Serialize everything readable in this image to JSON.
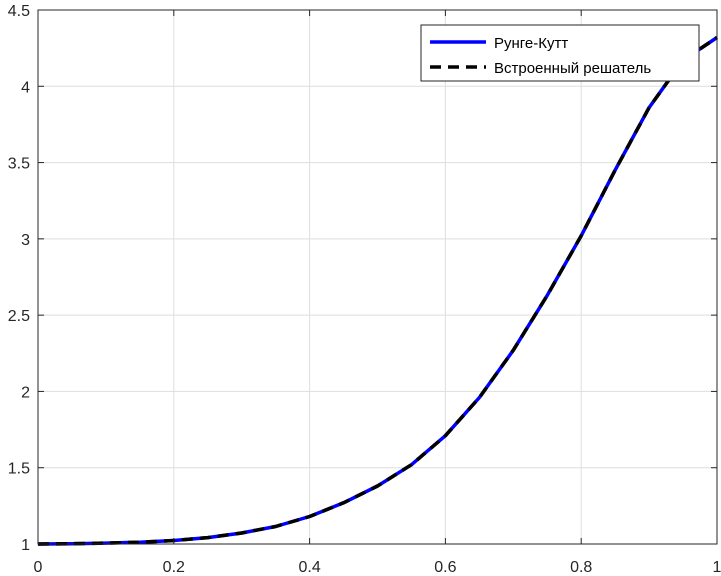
{
  "chart_data": {
    "type": "line",
    "title": "",
    "xlabel": "",
    "ylabel": "",
    "xlim": [
      0,
      1
    ],
    "ylim": [
      1,
      4.5
    ],
    "xticks": [
      "0",
      "0.2",
      "0.4",
      "0.6",
      "0.8",
      "1"
    ],
    "yticks": [
      "1",
      "1.5",
      "2",
      "2.5",
      "3",
      "3.5",
      "4",
      "4.5"
    ],
    "grid": true,
    "legend_position": "top-right",
    "series": [
      {
        "name": "Рунге-Кутт",
        "color": "#0000ff",
        "style": "solid",
        "x": [
          0,
          0.05,
          0.1,
          0.15,
          0.2,
          0.25,
          0.3,
          0.35,
          0.4,
          0.45,
          0.5,
          0.55,
          0.6,
          0.65,
          0.7,
          0.75,
          0.8,
          0.85,
          0.9,
          0.95,
          1.0
        ],
        "y": [
          1.0,
          1.002,
          1.006,
          1.012,
          1.023,
          1.042,
          1.072,
          1.115,
          1.18,
          1.27,
          1.38,
          1.52,
          1.71,
          1.96,
          2.27,
          2.63,
          3.02,
          3.45,
          3.86,
          4.17,
          4.32
        ]
      },
      {
        "name": "Встроенный решатель",
        "color": "#000000",
        "style": "dashed",
        "x": [
          0,
          0.05,
          0.1,
          0.15,
          0.2,
          0.25,
          0.3,
          0.35,
          0.4,
          0.45,
          0.5,
          0.55,
          0.6,
          0.65,
          0.7,
          0.75,
          0.8,
          0.85,
          0.9,
          0.95,
          1.0
        ],
        "y": [
          1.0,
          1.002,
          1.006,
          1.012,
          1.023,
          1.042,
          1.072,
          1.115,
          1.18,
          1.27,
          1.38,
          1.52,
          1.71,
          1.96,
          2.27,
          2.63,
          3.02,
          3.45,
          3.86,
          4.17,
          4.32
        ]
      }
    ]
  }
}
